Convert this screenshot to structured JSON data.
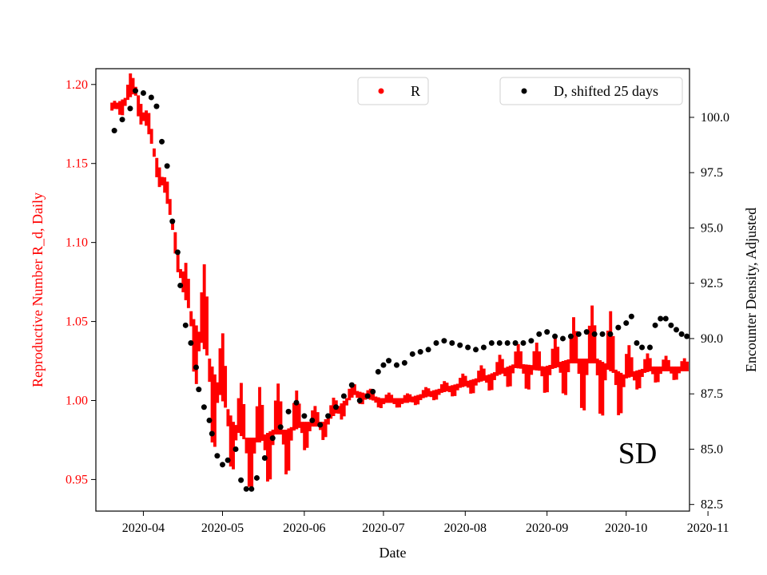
{
  "chart_data": {
    "type": "scatter",
    "title": "",
    "panel_label": "SD",
    "xlabel": "Date",
    "ylabel_left": "Reproductive Number R_d, Daily",
    "ylabel_right": "Encounter Density, Adjusted",
    "x_ticks": [
      "2020-04",
      "2020-05",
      "2020-06",
      "2020-07",
      "2020-08",
      "2020-09",
      "2020-10",
      "2020-11"
    ],
    "y_left_ticks": [
      "0.95",
      "1.00",
      "1.05",
      "1.10",
      "1.15",
      "1.20"
    ],
    "y_right_ticks": [
      "82.5",
      "85.0",
      "87.5",
      "90.0",
      "92.5",
      "95.0",
      "97.5",
      "100.0"
    ],
    "xlim": [
      "2020-03-14",
      "2020-10-25"
    ],
    "ylim_left": [
      0.93,
      1.21
    ],
    "ylim_right": [
      82.2,
      102.2
    ],
    "colors": {
      "R": "#ff0000",
      "D": "#000000",
      "left_axis": "#ff0000",
      "right_axis": "#000000"
    },
    "legends": [
      {
        "label": "R",
        "color": "#ff0000",
        "placement": "top-center"
      },
      {
        "label": "D, shifted 25 days",
        "color": "#000000",
        "placement": "top-right"
      }
    ],
    "series": [
      {
        "name": "R",
        "axis": "left",
        "style": "oscillating band (daily samples)",
        "center": [
          [
            "2020-03-20",
            1.185
          ],
          [
            "2020-03-25",
            1.19
          ],
          [
            "2020-03-29",
            1.197
          ],
          [
            "2020-04-03",
            1.17
          ],
          [
            "2020-04-08",
            1.14
          ],
          [
            "2020-04-13",
            1.105
          ],
          [
            "2020-04-16",
            1.07
          ],
          [
            "2020-04-20",
            1.05
          ],
          [
            "2020-04-25",
            1.03
          ],
          [
            "2020-04-30",
            1.005
          ],
          [
            "2020-05-05",
            0.985
          ],
          [
            "2020-05-10",
            0.975
          ],
          [
            "2020-05-15",
            0.975
          ],
          [
            "2020-05-20",
            0.98
          ],
          [
            "2020-05-25",
            0.98
          ],
          [
            "2020-05-31",
            0.985
          ],
          [
            "2020-06-08",
            0.985
          ],
          [
            "2020-06-14",
            0.995
          ],
          [
            "2020-06-20",
            1.005
          ],
          [
            "2020-06-30",
            1.0
          ],
          [
            "2020-07-10",
            1.0
          ],
          [
            "2020-07-20",
            1.005
          ],
          [
            "2020-07-31",
            1.01
          ],
          [
            "2020-08-10",
            1.015
          ],
          [
            "2020-08-20",
            1.022
          ],
          [
            "2020-08-31",
            1.02
          ],
          [
            "2020-09-10",
            1.025
          ],
          [
            "2020-09-20",
            1.025
          ],
          [
            "2020-09-30",
            1.015
          ],
          [
            "2020-10-10",
            1.02
          ],
          [
            "2020-10-24",
            1.02
          ]
        ],
        "amplitude": [
          [
            "2020-03-20",
            0.002
          ],
          [
            "2020-03-27",
            0.012
          ],
          [
            "2020-04-05",
            0.01
          ],
          [
            "2020-04-15",
            0.012
          ],
          [
            "2020-04-25",
            0.055
          ],
          [
            "2020-05-05",
            0.03
          ],
          [
            "2020-05-15",
            0.032
          ],
          [
            "2020-05-25",
            0.028
          ],
          [
            "2020-06-05",
            0.01
          ],
          [
            "2020-06-15",
            0.008
          ],
          [
            "2020-06-25",
            0.004
          ],
          [
            "2020-07-10",
            0.003
          ],
          [
            "2020-07-25",
            0.004
          ],
          [
            "2020-08-10",
            0.008
          ],
          [
            "2020-08-25",
            0.014
          ],
          [
            "2020-09-05",
            0.016
          ],
          [
            "2020-09-15",
            0.033
          ],
          [
            "2020-09-25",
            0.035
          ],
          [
            "2020-10-05",
            0.01
          ],
          [
            "2020-10-15",
            0.007
          ],
          [
            "2020-10-24",
            0.005
          ]
        ],
        "period_days": 7
      },
      {
        "name": "D, shifted 25 days",
        "axis": "right",
        "style": "dots (daily)",
        "points": [
          [
            "2020-03-21",
            99.4
          ],
          [
            "2020-03-24",
            99.9
          ],
          [
            "2020-03-27",
            100.4
          ],
          [
            "2020-03-29",
            101.2
          ],
          [
            "2020-04-01",
            101.1
          ],
          [
            "2020-04-04",
            100.9
          ],
          [
            "2020-04-06",
            100.5
          ],
          [
            "2020-04-08",
            98.9
          ],
          [
            "2020-04-10",
            97.8
          ],
          [
            "2020-04-12",
            95.3
          ],
          [
            "2020-04-14",
            93.9
          ],
          [
            "2020-04-15",
            92.4
          ],
          [
            "2020-04-17",
            90.6
          ],
          [
            "2020-04-19",
            89.8
          ],
          [
            "2020-04-21",
            88.7
          ],
          [
            "2020-04-22",
            87.7
          ],
          [
            "2020-04-24",
            86.9
          ],
          [
            "2020-04-26",
            86.3
          ],
          [
            "2020-04-27",
            85.7
          ],
          [
            "2020-04-29",
            84.7
          ],
          [
            "2020-05-01",
            84.3
          ],
          [
            "2020-05-03",
            84.5
          ],
          [
            "2020-05-06",
            85.0
          ],
          [
            "2020-05-08",
            83.6
          ],
          [
            "2020-05-10",
            83.2
          ],
          [
            "2020-05-12",
            83.2
          ],
          [
            "2020-05-14",
            83.7
          ],
          [
            "2020-05-17",
            84.6
          ],
          [
            "2020-05-20",
            85.5
          ],
          [
            "2020-05-23",
            86.0
          ],
          [
            "2020-05-26",
            86.7
          ],
          [
            "2020-05-29",
            87.1
          ],
          [
            "2020-06-01",
            86.5
          ],
          [
            "2020-06-04",
            86.3
          ],
          [
            "2020-06-07",
            86.1
          ],
          [
            "2020-06-10",
            86.5
          ],
          [
            "2020-06-13",
            86.9
          ],
          [
            "2020-06-16",
            87.4
          ],
          [
            "2020-06-19",
            87.9
          ],
          [
            "2020-06-22",
            87.2
          ],
          [
            "2020-06-25",
            87.4
          ],
          [
            "2020-06-27",
            87.6
          ],
          [
            "2020-06-29",
            88.5
          ],
          [
            "2020-07-01",
            88.8
          ],
          [
            "2020-07-03",
            89.0
          ],
          [
            "2020-07-06",
            88.8
          ],
          [
            "2020-07-09",
            88.9
          ],
          [
            "2020-07-12",
            89.3
          ],
          [
            "2020-07-15",
            89.4
          ],
          [
            "2020-07-18",
            89.5
          ],
          [
            "2020-07-21",
            89.8
          ],
          [
            "2020-07-24",
            89.9
          ],
          [
            "2020-07-27",
            89.8
          ],
          [
            "2020-07-30",
            89.7
          ],
          [
            "2020-08-02",
            89.6
          ],
          [
            "2020-08-05",
            89.5
          ],
          [
            "2020-08-08",
            89.6
          ],
          [
            "2020-08-11",
            89.8
          ],
          [
            "2020-08-14",
            89.8
          ],
          [
            "2020-08-17",
            89.8
          ],
          [
            "2020-08-20",
            89.8
          ],
          [
            "2020-08-23",
            89.8
          ],
          [
            "2020-08-26",
            89.9
          ],
          [
            "2020-08-29",
            90.2
          ],
          [
            "2020-09-01",
            90.3
          ],
          [
            "2020-09-04",
            90.1
          ],
          [
            "2020-09-07",
            90.0
          ],
          [
            "2020-09-10",
            90.1
          ],
          [
            "2020-09-13",
            90.2
          ],
          [
            "2020-09-16",
            90.3
          ],
          [
            "2020-09-19",
            90.2
          ],
          [
            "2020-09-22",
            90.2
          ],
          [
            "2020-09-25",
            90.2
          ],
          [
            "2020-09-28",
            90.5
          ],
          [
            "2020-10-01",
            90.7
          ],
          [
            "2020-10-03",
            91.0
          ],
          [
            "2020-10-05",
            89.8
          ],
          [
            "2020-10-07",
            89.6
          ],
          [
            "2020-10-10",
            89.6
          ],
          [
            "2020-10-12",
            90.6
          ],
          [
            "2020-10-14",
            90.9
          ],
          [
            "2020-10-16",
            90.9
          ],
          [
            "2020-10-18",
            90.6
          ],
          [
            "2020-10-20",
            90.4
          ],
          [
            "2020-10-22",
            90.2
          ],
          [
            "2020-10-24",
            90.1
          ]
        ]
      }
    ]
  }
}
